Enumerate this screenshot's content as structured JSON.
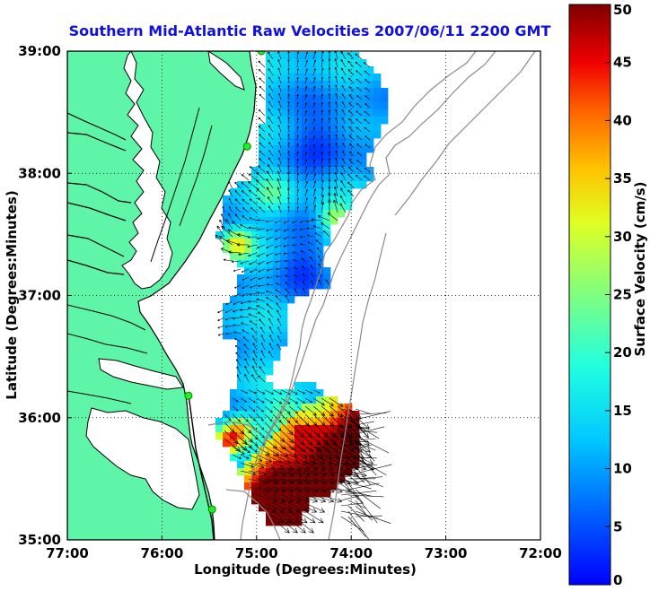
{
  "title": "Southern Mid-Atlantic Raw Velocities 2007/06/11 2200 GMT",
  "colors": {
    "title": "#1010e0",
    "land": "#5ef5a8",
    "coast": "#000000",
    "bathymetry": "#8a8a8a",
    "station": "#22ee22",
    "colormap": "jet"
  },
  "map": {
    "xlabel": "Longitude (Degrees:Minutes)",
    "ylabel": "Latitude (Degrees:Minutes)",
    "x_range": [
      -77,
      -72
    ],
    "y_range": [
      35,
      39
    ],
    "x_ticks": [
      {
        "value": -77,
        "label": "77:00"
      },
      {
        "value": -76,
        "label": "76:00"
      },
      {
        "value": -75,
        "label": "75:00"
      },
      {
        "value": -74,
        "label": "74:00"
      },
      {
        "value": -73,
        "label": "73:00"
      },
      {
        "value": -72,
        "label": "72:00"
      }
    ],
    "y_ticks": [
      {
        "value": 35,
        "label": "35:00"
      },
      {
        "value": 36,
        "label": "36:00"
      },
      {
        "value": 37,
        "label": "37:00"
      },
      {
        "value": 38,
        "label": "38:00"
      },
      {
        "value": 39,
        "label": "39:00"
      }
    ],
    "grid": "dotted",
    "stations": [
      {
        "lon": -74.95,
        "lat": 39.0
      },
      {
        "lon": -75.1,
        "lat": 38.22
      },
      {
        "lon": -75.72,
        "lat": 36.18
      },
      {
        "lon": -75.47,
        "lat": 35.25
      }
    ]
  },
  "colorbar": {
    "label": "Surface Velocity (cm/s)",
    "min": 0,
    "max": 50,
    "ticks": [
      {
        "value": 0,
        "label": "0"
      },
      {
        "value": 5,
        "label": "5"
      },
      {
        "value": 10,
        "label": "10"
      },
      {
        "value": 15,
        "label": "15"
      },
      {
        "value": 20,
        "label": "20"
      },
      {
        "value": 25,
        "label": "25"
      },
      {
        "value": 30,
        "label": "30"
      },
      {
        "value": 35,
        "label": "35"
      },
      {
        "value": 40,
        "label": "40"
      },
      {
        "value": 45,
        "label": "45"
      },
      {
        "value": 50,
        "label": "50"
      }
    ]
  }
}
